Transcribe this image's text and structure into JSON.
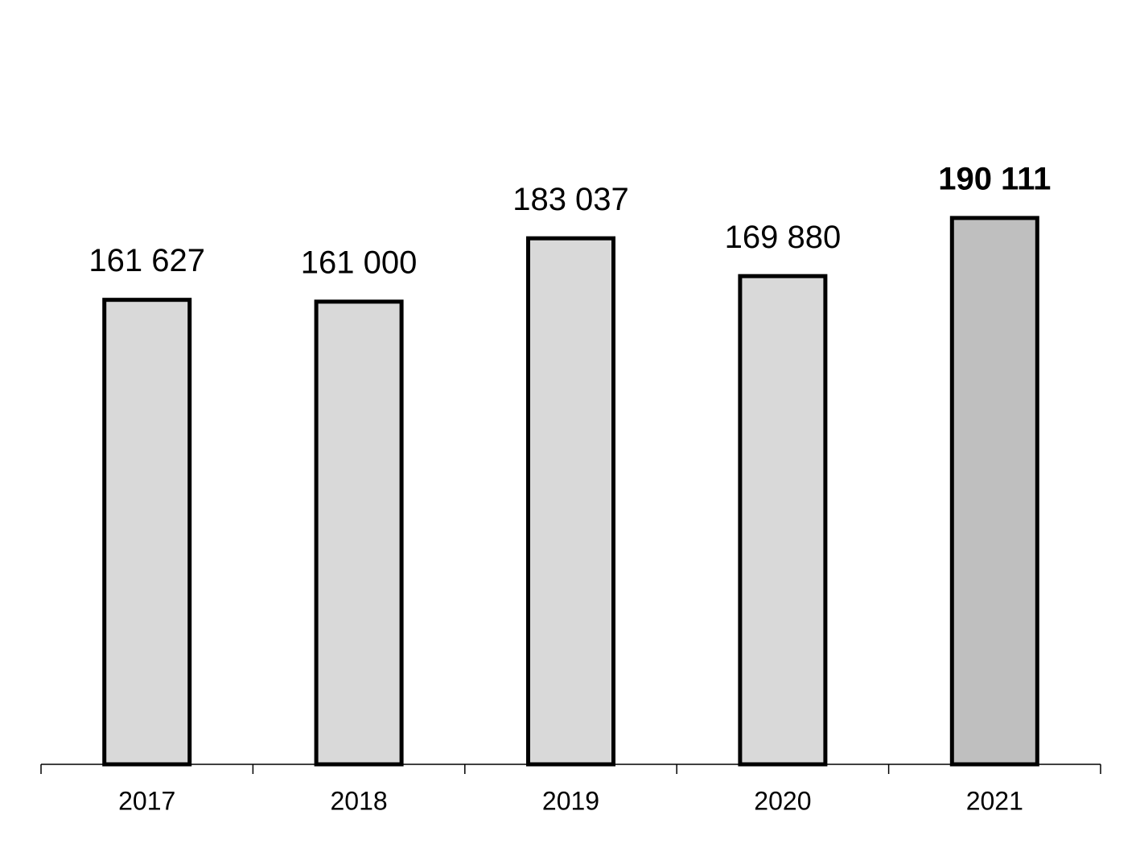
{
  "chart_data": {
    "type": "bar",
    "categories": [
      "2017",
      "2018",
      "2019",
      "2020",
      "2021"
    ],
    "values": [
      161627,
      161000,
      183037,
      169880,
      190111
    ],
    "value_labels": [
      "161 627",
      "161 000",
      "183 037",
      "169 880",
      "190 111"
    ],
    "colors": [
      "#d9d9d9",
      "#d9d9d9",
      "#d9d9d9",
      "#d9d9d9",
      "#bfbfbf"
    ],
    "bold_labels": [
      false,
      false,
      false,
      false,
      true
    ],
    "ylim": [
      0,
      250000
    ]
  }
}
